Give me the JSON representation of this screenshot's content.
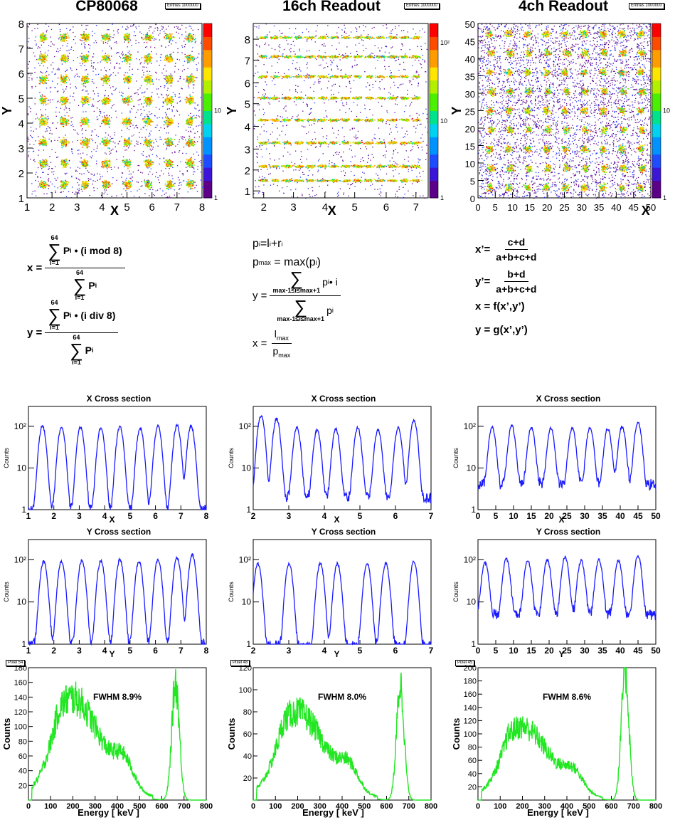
{
  "maps": [
    {
      "title": "CP80068",
      "stat": "Entries 1000000",
      "xlabel": "X",
      "ylabel": "Y",
      "xticks": [
        "1",
        "2",
        "3",
        "4",
        "5",
        "6",
        "7",
        "8"
      ],
      "yticks": [
        "1",
        "2",
        "3",
        "4",
        "5",
        "6",
        "7",
        "8"
      ],
      "zticks": [
        "1",
        "10"
      ]
    },
    {
      "title": "16ch Readout",
      "stat": "Entries 1000000",
      "xlabel": "X",
      "ylabel": "Y",
      "xticks": [
        "2",
        "3",
        "4",
        "5",
        "6",
        "7"
      ],
      "yticks": [
        "1",
        "2",
        "3",
        "4",
        "5",
        "6",
        "7",
        "8"
      ],
      "zticks": [
        "1",
        "10",
        "10²"
      ]
    },
    {
      "title": "4ch Readout",
      "stat": "Entries 1000000",
      "xlabel": "X",
      "ylabel": "Y",
      "xticks": [
        "0",
        "5",
        "10",
        "15",
        "20",
        "25",
        "30",
        "35",
        "40",
        "45",
        "50"
      ],
      "yticks": [
        "0",
        "5",
        "10",
        "15",
        "20",
        "25",
        "30",
        "35",
        "40",
        "45",
        "50"
      ],
      "zticks": [
        "1",
        "10"
      ]
    }
  ],
  "formulas": {
    "col1": {
      "x_lhs": "x =",
      "x_num_sum_top": "64",
      "x_num_sum_bot": "i=1",
      "x_num": "P",
      "x_num_sub": "i",
      "x_num_rest": "• (i mod 8)",
      "x_den": "P",
      "x_den_sub": "i",
      "y_lhs": "y =",
      "y_num_rest": "• (i div 8)"
    },
    "col2": {
      "p_def": "p",
      "p_def_sub": "i",
      "p_def_rest": "=l",
      "p_def_rest_sub": "i",
      "p_def_plus": "+r",
      "p_def_plus_sub": "i",
      "pmax": "p",
      "pmax_sub": "max",
      "pmax_rest": "= max(p",
      "pmax_rest_sub": "i",
      "pmax_close": ")",
      "y_lhs": "y =",
      "sum_lim": "max-1≤i≤max+1",
      "y_num": "p",
      "y_num_sub": "i",
      "y_num_rest": "• i",
      "y_den": "p",
      "y_den_sub": "i",
      "x_lhs": "x =",
      "x_num": "l",
      "x_num_sub": "max",
      "x_den": "p",
      "x_den_sub": "max"
    },
    "col3": {
      "xp_lhs": "x’=",
      "xp_num": "c+d",
      "xp_den": "a+b+c+d",
      "yp_lhs": "y’=",
      "yp_num": "b+d",
      "yp_den": "a+b+c+d",
      "fx": "x = f(x’,y’)",
      "gy": "y = g(x’,y’)"
    }
  },
  "chart_data": [
    {
      "type": "line",
      "title": "X Cross section",
      "xlabel": "X",
      "ylabel": "Counts",
      "log_y": true,
      "xlim": [
        1,
        8
      ],
      "ylim": [
        1,
        300
      ],
      "xticks": [
        "1",
        "2",
        "3",
        "4",
        "5",
        "6",
        "7",
        "8"
      ],
      "yticks": [
        "1",
        "10",
        "10²"
      ],
      "peaks": [
        1.55,
        2.3,
        3.05,
        3.85,
        4.6,
        5.4,
        6.1,
        6.85,
        7.4
      ],
      "peak_heights": [
        100,
        95,
        95,
        90,
        95,
        90,
        100,
        105,
        100
      ],
      "baseline": 1,
      "color": "#1a1aff"
    },
    {
      "type": "line",
      "title": "X Cross section",
      "xlabel": "X",
      "ylabel": "Counts",
      "log_y": true,
      "xlim": [
        1.8,
        7.5
      ],
      "ylim": [
        1,
        300
      ],
      "xticks": [
        "2",
        "3",
        "4",
        "5",
        "6",
        "7"
      ],
      "yticks": [
        "1",
        "10",
        "10²"
      ],
      "peaks": [
        2.05,
        2.55,
        3.2,
        3.85,
        4.45,
        5.15,
        5.8,
        6.45,
        6.95
      ],
      "peak_heights": [
        180,
        150,
        90,
        80,
        85,
        90,
        80,
        90,
        140
      ],
      "baseline": 2,
      "color": "#1a1aff"
    },
    {
      "type": "line",
      "title": "X Cross section",
      "xlabel": "X",
      "ylabel": "Counts",
      "log_y": true,
      "xlim": [
        0,
        50
      ],
      "ylim": [
        1,
        300
      ],
      "xticks": [
        "0",
        "5",
        "10",
        "15",
        "20",
        "25",
        "30",
        "35",
        "40",
        "45",
        "50"
      ],
      "yticks": [
        "1",
        "10",
        "10²"
      ],
      "peaks": [
        4,
        9.5,
        15,
        20.5,
        26.5,
        31.5,
        36.5,
        40.5,
        45
      ],
      "peak_heights": [
        90,
        100,
        90,
        85,
        85,
        90,
        85,
        95,
        120
      ],
      "baseline": 4,
      "color": "#1a1aff"
    },
    {
      "type": "line",
      "title": "Y Cross section",
      "xlabel": "Y",
      "ylabel": "Counts",
      "log_y": true,
      "xlim": [
        1,
        8
      ],
      "ylim": [
        1,
        300
      ],
      "xticks": [
        "1",
        "2",
        "3",
        "4",
        "5",
        "6",
        "7",
        "8"
      ],
      "yticks": [
        "1",
        "10",
        "10²"
      ],
      "peaks": [
        1.6,
        2.3,
        3.1,
        3.85,
        4.6,
        5.35,
        6.1,
        6.85,
        7.45
      ],
      "peak_heights": [
        90,
        90,
        95,
        95,
        100,
        90,
        100,
        110,
        130
      ],
      "baseline": 1,
      "color": "#1a1aff"
    },
    {
      "type": "line",
      "title": "Y Cross section",
      "xlabel": "Y",
      "ylabel": "Counts",
      "log_y": true,
      "xlim": [
        1.8,
        7.5
      ],
      "ylim": [
        1,
        300
      ],
      "xticks": [
        "2",
        "3",
        "4",
        "5",
        "6",
        "7"
      ],
      "yticks": [
        "1",
        "10",
        "10²"
      ],
      "peaks": [
        1.95,
        2.95,
        3.95,
        4.5,
        5.45,
        6.05,
        6.95
      ],
      "peak_heights": [
        80,
        80,
        80,
        80,
        80,
        80,
        90
      ],
      "baseline": 0.9,
      "color": "#1a1aff"
    },
    {
      "type": "line",
      "title": "Y Cross section",
      "xlabel": "Y",
      "ylabel": "Counts",
      "log_y": true,
      "xlim": [
        0,
        50
      ],
      "ylim": [
        1,
        300
      ],
      "xticks": [
        "0",
        "5",
        "10",
        "15",
        "20",
        "25",
        "30",
        "35",
        "40",
        "45",
        "50"
      ],
      "yticks": [
        "1",
        "10",
        "10²"
      ],
      "peaks": [
        2,
        8,
        14,
        19.5,
        24.5,
        29,
        34,
        39.5,
        45
      ],
      "peak_heights": [
        80,
        100,
        90,
        95,
        110,
        90,
        95,
        90,
        120
      ],
      "baseline": 5,
      "color": "#1a1aff"
    },
    {
      "type": "line",
      "title": "",
      "stat": "Pixel 54",
      "xlabel": "Energy [ keV ]",
      "ylabel": "Counts",
      "xlim": [
        0,
        800
      ],
      "ylim": [
        0,
        180
      ],
      "xticks": [
        "0",
        "100",
        "200",
        "300",
        "400",
        "500",
        "600",
        "700",
        "800"
      ],
      "yticks": [
        "20",
        "40",
        "60",
        "80",
        "100",
        "120",
        "140",
        "160",
        "180"
      ],
      "annotation": "FWHM 8.9%",
      "photopeak": 662,
      "photopeak_counts": 160,
      "compton_peak": 200,
      "compton_counts": 125,
      "color": "#22e622"
    },
    {
      "type": "line",
      "title": "",
      "stat": "Pixel 48",
      "xlabel": "Energy [ keV ]",
      "ylabel": "Counts",
      "xlim": [
        0,
        800
      ],
      "ylim": [
        0,
        120
      ],
      "xticks": [
        "0",
        "100",
        "200",
        "300",
        "400",
        "500",
        "600",
        "700",
        "800"
      ],
      "yticks": [
        "20",
        "40",
        "60",
        "80",
        "100",
        "120"
      ],
      "annotation": "FWHM 8.0%",
      "photopeak": 662,
      "photopeak_counts": 105,
      "compton_peak": 200,
      "compton_counts": 72,
      "color": "#22e622"
    },
    {
      "type": "line",
      "title": "",
      "stat": "Pixel 45",
      "xlabel": "Energy [ keV ]",
      "ylabel": "Counts",
      "xlim": [
        0,
        800
      ],
      "ylim": [
        0,
        200
      ],
      "xticks": [
        "0",
        "100",
        "200",
        "300",
        "400",
        "500",
        "600",
        "700",
        "800"
      ],
      "yticks": [
        "20",
        "40",
        "60",
        "80",
        "100",
        "120",
        "140",
        "160",
        "180",
        "200"
      ],
      "annotation": "FWHM 8.6%",
      "photopeak": 662,
      "photopeak_counts": 195,
      "compton_peak": 200,
      "compton_counts": 100,
      "color": "#22e622"
    }
  ]
}
